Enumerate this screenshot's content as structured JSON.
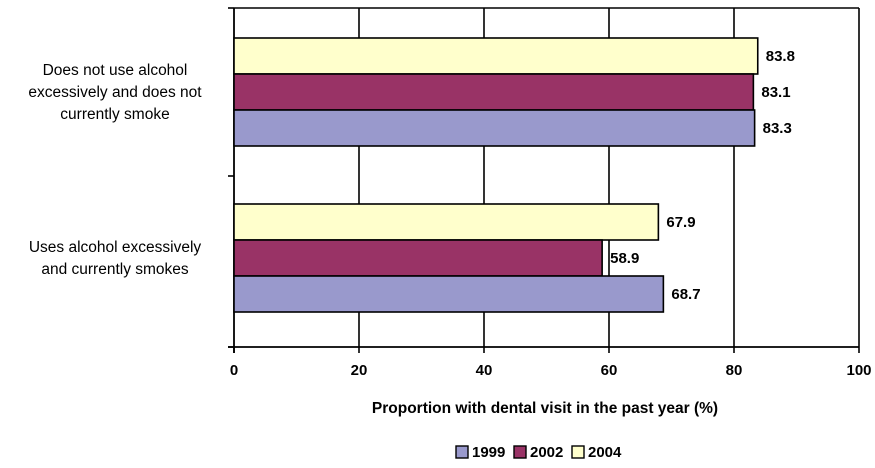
{
  "chart_data": {
    "type": "bar",
    "orientation": "horizontal",
    "categories": [
      "Does not use alcohol excessively and does not currently smoke",
      "Uses alcohol excessively and currently smokes"
    ],
    "category_lines": [
      [
        "Does not use alcohol",
        "excessively and does not",
        "currently smoke"
      ],
      [
        "Uses alcohol excessively",
        "and currently smokes"
      ]
    ],
    "series": [
      {
        "name": "1999",
        "values": [
          83.3,
          68.7
        ],
        "color": "#9999cc"
      },
      {
        "name": "2002",
        "values": [
          83.1,
          58.9
        ],
        "color": "#993366"
      },
      {
        "name": "2004",
        "values": [
          83.8,
          67.9
        ],
        "color": "#ffffcc"
      }
    ],
    "data_labels": [
      [
        "83.3",
        "68.7"
      ],
      [
        "83.1",
        "58.9"
      ],
      [
        "83.8",
        "67.9"
      ]
    ],
    "xlabel": "Proportion with dental visit in the past year (%)",
    "xlim": [
      0,
      100
    ],
    "xticks": [
      0,
      20,
      40,
      60,
      80,
      100
    ],
    "xtick_labels": [
      "0",
      "20",
      "40",
      "60",
      "80",
      "100"
    ],
    "grid": true,
    "legend_position": "bottom"
  }
}
